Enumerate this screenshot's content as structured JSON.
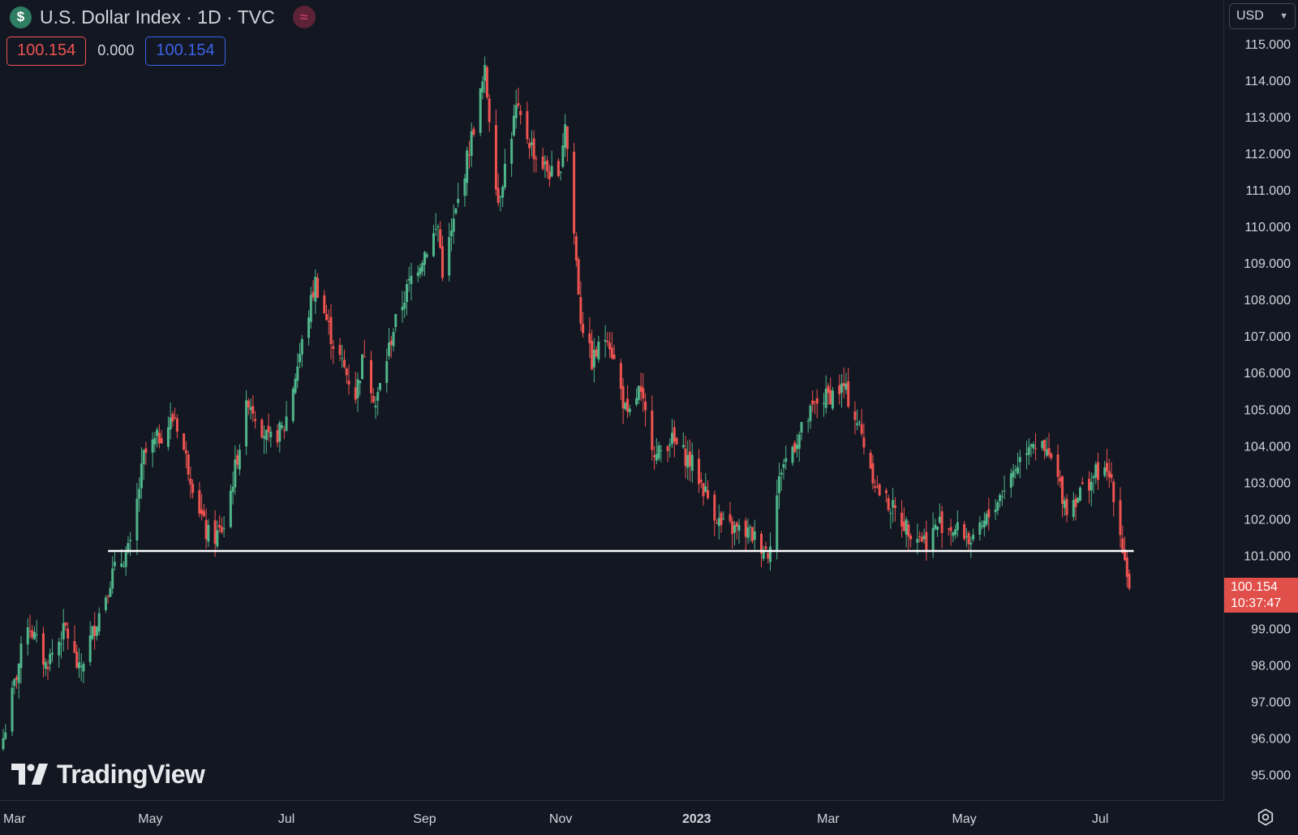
{
  "legend": {
    "symbol_icon": "dollar-icon",
    "title": "U.S. Dollar Index · 1D · TVC",
    "indicator_icon": "wave-icon",
    "open_value": "100.154",
    "change_value": "0.000",
    "close_value": "100.154"
  },
  "currency_selector": {
    "label": "USD",
    "icon": "chevron-down-icon"
  },
  "last_price": {
    "value": "100.154",
    "countdown": "10:37:47"
  },
  "watermark": {
    "text": "TradingView"
  },
  "settings": {
    "icon": "gear-icon"
  },
  "colors": {
    "background": "#131722",
    "up": "#4fb58a",
    "down": "#ef5350",
    "axis_text": "#d1d4dc",
    "level_line": "#ffffff",
    "badge": "#e14f4a"
  },
  "chart_data": {
    "type": "candlestick",
    "interval": "1D",
    "x_range": [
      "2022-02-24",
      "2023-07-14"
    ],
    "xtick_labels": [
      {
        "date": "2022-03-01",
        "label": "Mar"
      },
      {
        "date": "2022-05-01",
        "label": "May"
      },
      {
        "date": "2022-07-01",
        "label": "Jul"
      },
      {
        "date": "2022-09-01",
        "label": "Sep"
      },
      {
        "date": "2022-11-01",
        "label": "Nov"
      },
      {
        "date": "2023-01-01",
        "label": "2023"
      },
      {
        "date": "2023-03-01",
        "label": "Mar"
      },
      {
        "date": "2023-05-01",
        "label": "May"
      },
      {
        "date": "2023-07-01",
        "label": "Jul"
      }
    ],
    "ylim": [
      94.3,
      116.2
    ],
    "ytick_labels": [
      "115.000",
      "114.000",
      "113.000",
      "112.000",
      "111.000",
      "110.000",
      "109.000",
      "108.000",
      "107.000",
      "106.000",
      "105.000",
      "104.000",
      "103.000",
      "102.000",
      "101.000",
      "99.000",
      "98.000",
      "97.000",
      "96.000",
      "95.000"
    ],
    "horizontal_levels": [
      {
        "value": 101.12,
        "start": "2022-04-12",
        "end": "2023-07-16"
      }
    ],
    "price_path": [
      [
        "2022-02-24",
        96.0
      ],
      [
        "2022-03-07",
        99.2
      ],
      [
        "2022-03-15",
        98.0
      ],
      [
        "2022-03-24",
        99.0
      ],
      [
        "2022-03-30",
        97.8
      ],
      [
        "2022-04-14",
        100.5
      ],
      [
        "2022-04-22",
        101.2
      ],
      [
        "2022-04-28",
        103.7
      ],
      [
        "2022-05-12",
        104.8
      ],
      [
        "2022-05-26",
        101.6
      ],
      [
        "2022-05-30",
        101.5
      ],
      [
        "2022-06-03",
        101.8
      ],
      [
        "2022-06-14",
        105.3
      ],
      [
        "2022-06-23",
        104.1
      ],
      [
        "2022-06-30",
        104.5
      ],
      [
        "2022-07-14",
        108.5
      ],
      [
        "2022-07-22",
        106.8
      ],
      [
        "2022-08-01",
        105.4
      ],
      [
        "2022-08-05",
        106.6
      ],
      [
        "2022-08-10",
        105.1
      ],
      [
        "2022-08-18",
        107.2
      ],
      [
        "2022-08-26",
        108.6
      ],
      [
        "2022-09-07",
        110.0
      ],
      [
        "2022-09-09",
        108.8
      ],
      [
        "2022-09-13",
        109.8
      ],
      [
        "2022-09-28",
        114.2
      ],
      [
        "2022-10-04",
        110.7
      ],
      [
        "2022-10-12",
        113.2
      ],
      [
        "2022-10-21",
        111.9
      ],
      [
        "2022-10-31",
        111.2
      ],
      [
        "2022-11-03",
        112.9
      ],
      [
        "2022-11-10",
        107.5
      ],
      [
        "2022-11-15",
        106.3
      ],
      [
        "2022-11-22",
        107.1
      ],
      [
        "2022-12-01",
        104.7
      ],
      [
        "2022-12-06",
        105.5
      ],
      [
        "2022-12-14",
        103.7
      ],
      [
        "2022-12-20",
        104.2
      ],
      [
        "2022-12-30",
        103.5
      ],
      [
        "2023-01-12",
        101.8
      ],
      [
        "2023-01-25",
        101.6
      ],
      [
        "2023-02-02",
        101.1
      ],
      [
        "2023-02-08",
        103.4
      ],
      [
        "2023-02-24",
        105.2
      ],
      [
        "2023-03-08",
        105.6
      ],
      [
        "2023-03-15",
        104.5
      ],
      [
        "2023-03-23",
        102.8
      ],
      [
        "2023-04-05",
        101.8
      ],
      [
        "2023-04-14",
        101.4
      ],
      [
        "2023-04-20",
        101.9
      ],
      [
        "2023-05-01",
        101.6
      ],
      [
        "2023-05-05",
        101.3
      ],
      [
        "2023-05-31",
        104.2
      ],
      [
        "2023-06-09",
        103.6
      ],
      [
        "2023-06-16",
        102.3
      ],
      [
        "2023-06-23",
        102.8
      ],
      [
        "2023-06-30",
        103.3
      ],
      [
        "2023-07-06",
        103.1
      ],
      [
        "2023-07-14",
        100.15
      ]
    ]
  }
}
